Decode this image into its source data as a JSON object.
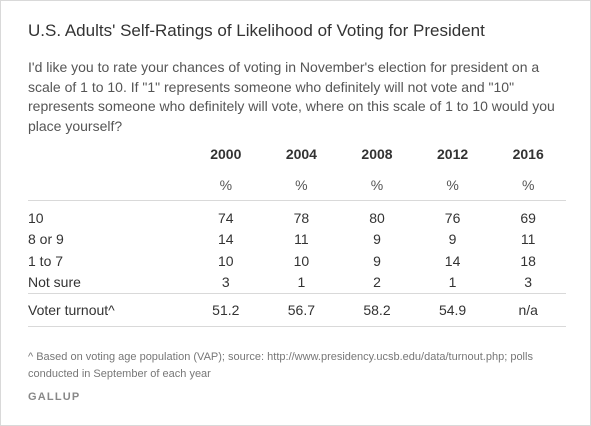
{
  "title": "U.S. Adults' Self-Ratings of Likelihood of Voting for President",
  "question": "I'd like you to rate your chances of voting in November's election for president on a scale of 1 to 10. If \"1\" represents someone who definitely will not vote and \"10\" represents someone who definitely will vote, where on this scale of 1 to 10 would you place yourself?",
  "table": {
    "years": [
      "2000",
      "2004",
      "2008",
      "2012",
      "2016"
    ],
    "unit": "%",
    "rows": [
      {
        "label": "10",
        "values": [
          "74",
          "78",
          "80",
          "76",
          "69"
        ]
      },
      {
        "label": "8 or 9",
        "values": [
          "14",
          "11",
          "9",
          "9",
          "11"
        ]
      },
      {
        "label": "1 to 7",
        "values": [
          "10",
          "10",
          "9",
          "14",
          "18"
        ]
      },
      {
        "label": "Not sure",
        "values": [
          "3",
          "1",
          "2",
          "1",
          "3"
        ]
      }
    ],
    "turnout": {
      "label": "Voter turnout^",
      "values": [
        "51.2",
        "56.7",
        "58.2",
        "54.9",
        "n/a"
      ]
    }
  },
  "footnote": "^ Based on voting age population (VAP); source: http://www.presidency.ucsb.edu/data/turnout.php; polls conducted in September of each year",
  "brand": "GALLUP"
}
